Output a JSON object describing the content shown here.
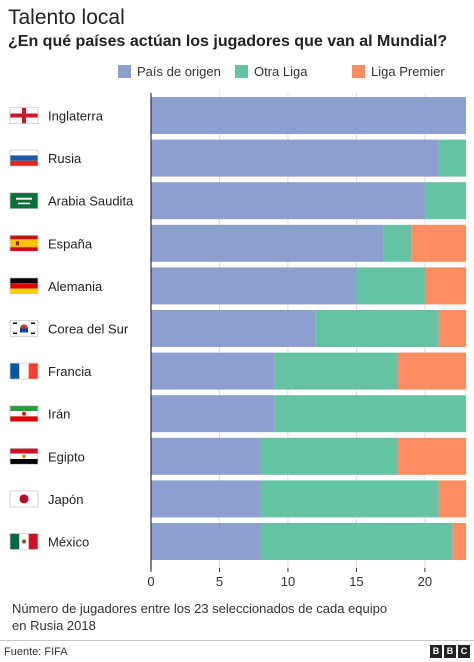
{
  "header": {
    "title": "Talento local",
    "subtitle": "¿En qué países actúan los jugadores que van al Mundial?"
  },
  "legend": [
    {
      "label": "País de origen",
      "color": "#8d9fcf"
    },
    {
      "label": "Otra Liga",
      "color": "#66c2a5"
    },
    {
      "label": "Liga Premier",
      "color": "#fc8d62"
    }
  ],
  "chart_data": {
    "type": "bar",
    "orientation": "horizontal",
    "stacked": true,
    "categories": [
      "Inglaterra",
      "Rusia",
      "Arabia Saudita",
      "España",
      "Alemania",
      "Corea del Sur",
      "Francia",
      "Irán",
      "Egipto",
      "Japón",
      "México"
    ],
    "flags": [
      "england-flag",
      "russia-flag",
      "saudi-arabia-flag",
      "spain-flag",
      "germany-flag",
      "south-korea-flag",
      "france-flag",
      "iran-flag",
      "egypt-flag",
      "japan-flag",
      "mexico-flag"
    ],
    "series": [
      {
        "name": "País de origen",
        "color": "#8d9fcf",
        "values": [
          23,
          21,
          20,
          17,
          15,
          12,
          9,
          9,
          8,
          8,
          8
        ]
      },
      {
        "name": "Otra Liga",
        "color": "#66c2a5",
        "values": [
          0,
          2,
          3,
          2,
          5,
          9,
          9,
          14,
          10,
          13,
          14
        ]
      },
      {
        "name": "Liga Premier",
        "color": "#fc8d62",
        "values": [
          0,
          0,
          0,
          4,
          3,
          2,
          5,
          0,
          5,
          2,
          1
        ]
      }
    ],
    "xlim": [
      0,
      23
    ],
    "xticks": [
      0,
      5,
      10,
      15,
      20
    ],
    "legend_position": "top"
  },
  "note": "Número de jugadores entre los 23 seleccionados de cada equipo\n en Rusia 2018",
  "footer": {
    "source": "Fuente: FIFA",
    "logo": [
      "B",
      "B",
      "C"
    ]
  }
}
